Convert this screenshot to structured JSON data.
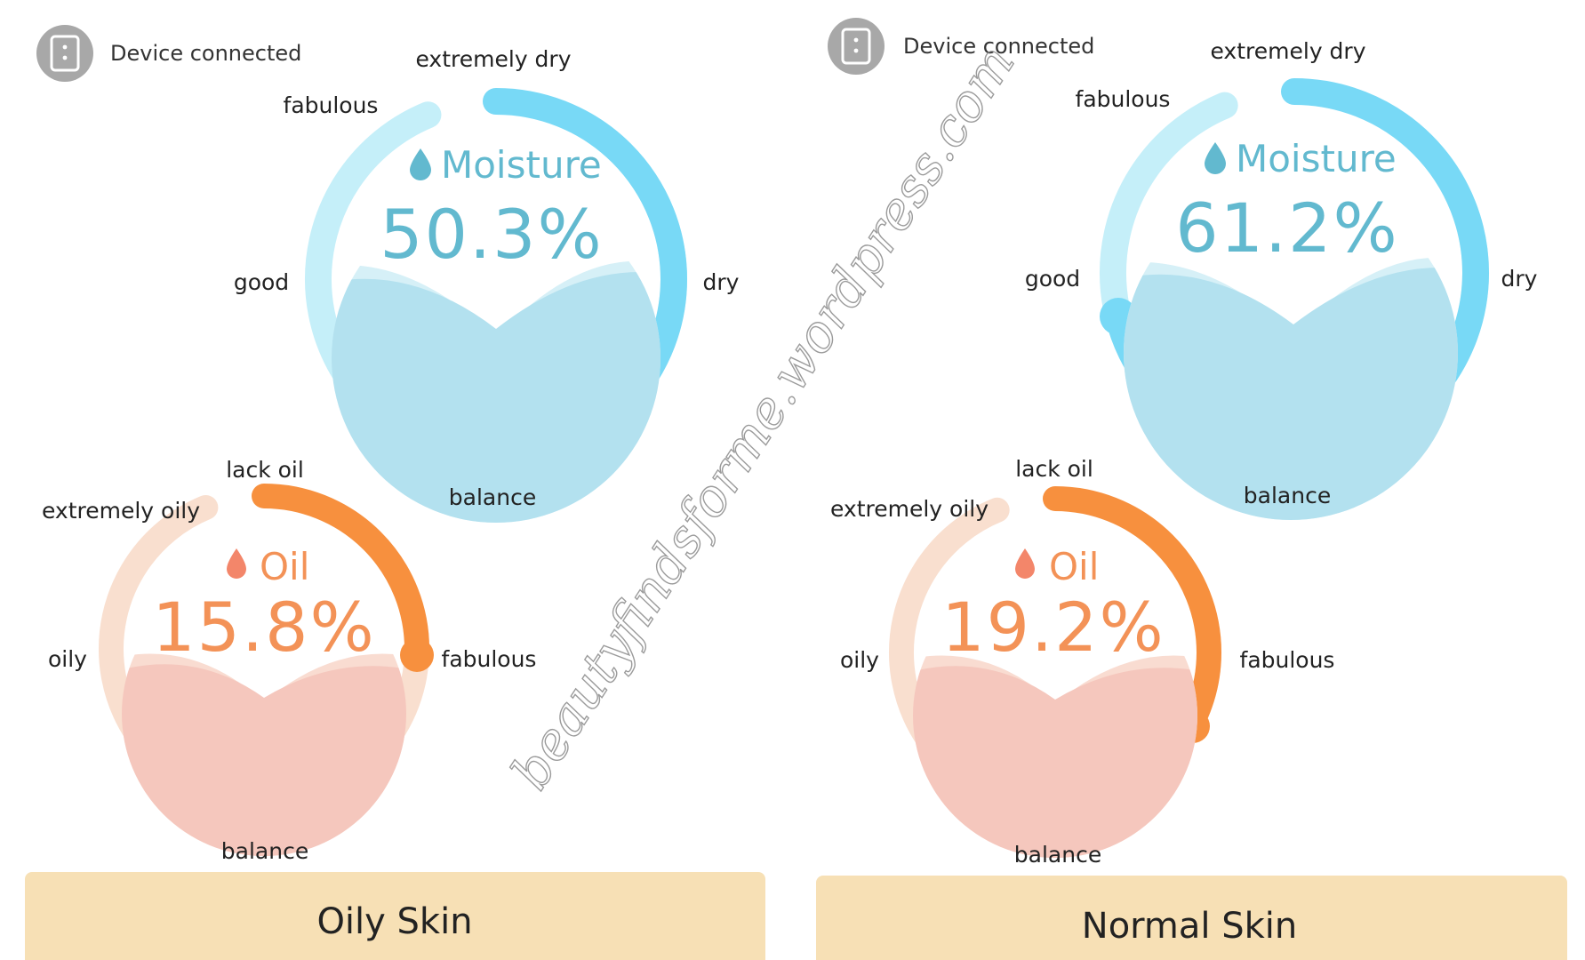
{
  "panels": [
    {
      "status": "Device connected",
      "result_label": "Oily Skin",
      "moisture": {
        "title": "Moisture",
        "value": "50.3%",
        "labels": {
          "top": "extremely dry",
          "upper_left": "fabulous",
          "left": "good",
          "right": "dry",
          "bottom": "balance"
        }
      },
      "oil": {
        "title": "Oil",
        "value": "15.8%",
        "labels": {
          "top": "lack oil",
          "upper_left": "extremely oily",
          "left": "oily",
          "right": "fabulous",
          "bottom": "balance"
        }
      }
    },
    {
      "status": "Device connected",
      "result_label": "Normal Skin",
      "moisture": {
        "title": "Moisture",
        "value": "61.2%",
        "labels": {
          "top": "extremely dry",
          "upper_left": "fabulous",
          "left": "good",
          "right": "dry",
          "bottom": "balance"
        }
      },
      "oil": {
        "title": "Oil",
        "value": "19.2%",
        "labels": {
          "top": "lack oil",
          "upper_left": "extremely oily",
          "left": "oily",
          "right": "fabulous",
          "bottom": "balance"
        }
      }
    }
  ],
  "watermark": "beautyfindsforme.wordpress.com",
  "icons": {
    "device": "phone-device-icon",
    "drop": "water-drop-icon"
  },
  "colors": {
    "moisture_accent": "#78d9f6",
    "moisture_light": "#c5eff9",
    "moisture_fill": "#b3e1ef",
    "moisture_text": "#62b9cf",
    "oil_accent": "#f7903e",
    "oil_light": "#f9dfcf",
    "oil_fill": "#f5c7bd",
    "oil_text": "#f39257",
    "result_bg": "#f7e0b5",
    "device_icon": "#a8a8a8"
  }
}
